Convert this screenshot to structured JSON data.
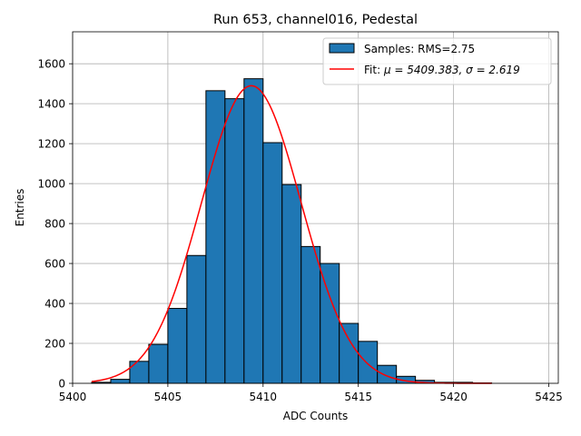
{
  "chart_data": {
    "type": "bar",
    "title": "Run 653, channel016, Pedestal",
    "xlabel": "ADC Counts",
    "ylabel": "Entries",
    "xlim": [
      5400,
      5425.5
    ],
    "ylim": [
      0,
      1760
    ],
    "xticks": [
      5400,
      5405,
      5410,
      5415,
      5420,
      5425
    ],
    "yticks": [
      0,
      200,
      400,
      600,
      800,
      1000,
      1200,
      1400,
      1600
    ],
    "grid": true,
    "legend_position": "top-right",
    "histogram": {
      "name": "Samples: RMS=2.75",
      "color": "#1f77b4",
      "edgecolor": "#000000",
      "bin_edges": [
        5401,
        5402,
        5403,
        5404,
        5405,
        5406,
        5407,
        5408,
        5409,
        5410,
        5411,
        5412,
        5413,
        5414,
        5415,
        5416,
        5417,
        5418,
        5419,
        5420,
        5421,
        5422
      ],
      "counts": [
        5,
        20,
        110,
        195,
        375,
        640,
        1465,
        1425,
        1525,
        1205,
        995,
        685,
        600,
        300,
        210,
        90,
        35,
        15,
        5,
        5,
        2
      ]
    },
    "fit": {
      "name_prefix": "Fit: ",
      "name_math": "μ = 5409.383, σ = 2.619",
      "color": "#ff0000",
      "mu": 5409.383,
      "sigma": 2.619,
      "amplitude": 1490,
      "x_range": [
        5401,
        5422
      ]
    }
  }
}
